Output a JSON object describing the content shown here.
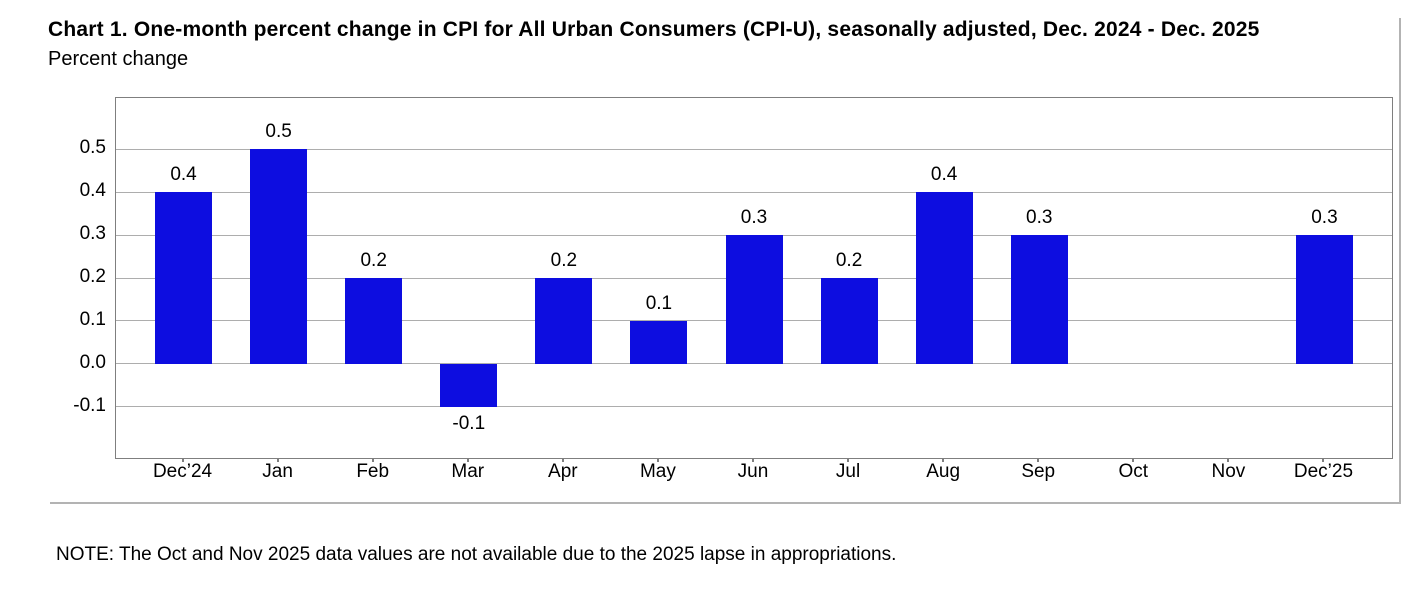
{
  "colors": {
    "bar": "#0d0de0",
    "gridline": "#adadad",
    "frame": "#7f7f7f",
    "divider": "#b3b3b3",
    "text": "#000000"
  },
  "note": "NOTE: The Oct and Nov 2025 data values are not available due to the 2025 lapse in appropriations.",
  "chart_data": {
    "type": "bar",
    "title": "Chart 1. One-month percent change in CPI for All Urban Consumers (CPI-U), seasonally adjusted, Dec. 2024 - Dec. 2025",
    "subtitle": "Percent change",
    "xlabel": "",
    "ylabel": "Percent change",
    "categories": [
      "Dec’24",
      "Jan",
      "Feb",
      "Mar",
      "Apr",
      "May",
      "Jun",
      "Jul",
      "Aug",
      "Sep",
      "Oct",
      "Nov",
      "Dec’25"
    ],
    "values": [
      0.4,
      0.5,
      0.2,
      -0.1,
      0.2,
      0.1,
      0.3,
      0.2,
      0.4,
      0.3,
      null,
      null,
      0.3
    ],
    "value_labels": [
      "0.4",
      "0.5",
      "0.2",
      "-0.1",
      "0.2",
      "0.1",
      "0.3",
      "0.2",
      "0.4",
      "0.3",
      "",
      "",
      "0.3"
    ],
    "missing_note": "Oct and Nov 2025 values not shown",
    "y_ticks": [
      "0.5",
      "0.4",
      "0.3",
      "0.2",
      "0.1",
      "0.0",
      "-0.1"
    ],
    "ylim": [
      -0.22,
      0.62
    ],
    "grid": true,
    "legend": false
  }
}
